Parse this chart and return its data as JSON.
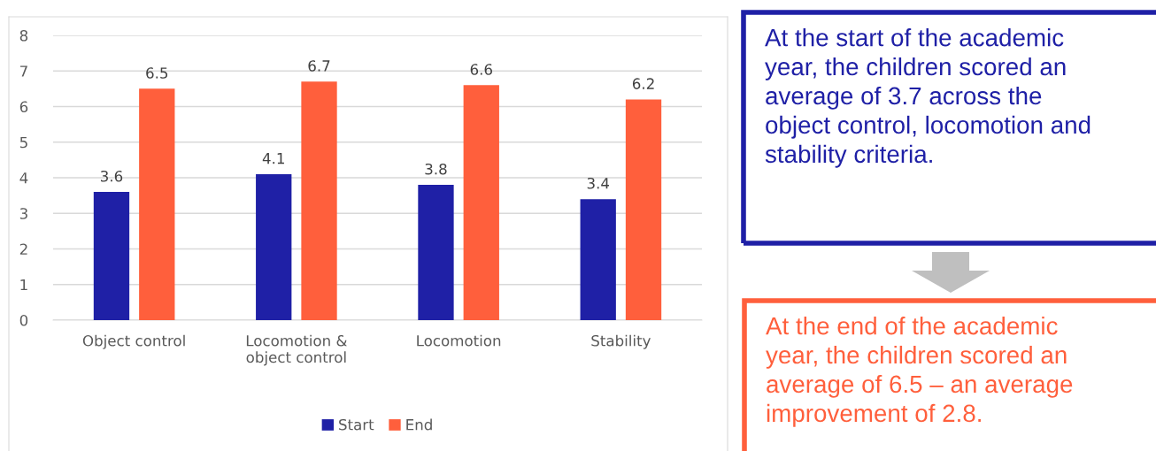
{
  "chart_data": {
    "type": "bar",
    "categories": [
      "Object control",
      "Locomotion &\nobject control",
      "Locomotion",
      "Stability"
    ],
    "series": [
      {
        "name": "Start",
        "color": "#1f20a6",
        "values": [
          3.6,
          4.1,
          3.8,
          3.4
        ]
      },
      {
        "name": "End",
        "color": "#ff5f3c",
        "values": [
          6.5,
          6.7,
          6.6,
          6.2
        ]
      }
    ],
    "ylim": [
      0,
      8
    ],
    "yticks": [
      0,
      1,
      2,
      3,
      4,
      5,
      6,
      7,
      8
    ],
    "grid": "y",
    "legend": "bottom",
    "data_labels": true,
    "annotations": [
      "At the start of the academic\nyear, the children scored an\naverage of 3.7 across the\nobject control, locomotion and\nstability criteria.",
      "At the end of the academic\nyear, the children scored an\naverage of 6.5 – an average\nimprovement of 2.8."
    ]
  }
}
